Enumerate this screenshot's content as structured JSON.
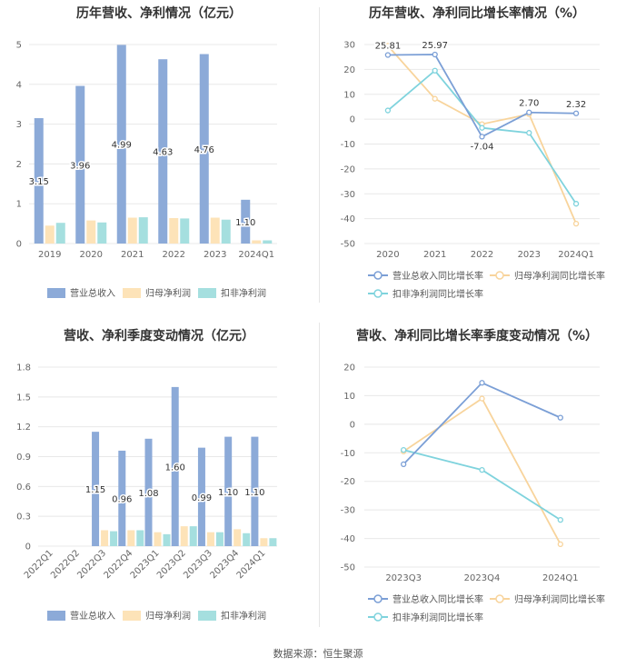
{
  "source": "数据来源：恒生聚源",
  "colors": {
    "revenue": "#8caad8",
    "net_profit": "#fde3b8",
    "deducted_profit": "#a5dfdf",
    "revenue_line": "#7b9fd6",
    "net_line": "#f8d49c",
    "deducted_line": "#7fd3dd",
    "grid": "#e8e8e8",
    "axis_text": "#666666",
    "label_text": "#333333"
  },
  "chart_data": [
    {
      "type": "bar",
      "title": "历年营收、净利情况（亿元）",
      "categories": [
        "2019",
        "2020",
        "2021",
        "2022",
        "2023",
        "2024Q1"
      ],
      "ylim": [
        0,
        5
      ],
      "yticks": [
        "0",
        "1",
        "2",
        "3",
        "4",
        "5"
      ],
      "series": [
        {
          "name": "营业总收入",
          "values": [
            3.15,
            3.96,
            4.99,
            4.63,
            4.76,
            1.1
          ],
          "labels": [
            "3.15",
            "3.96",
            "4.99",
            "4.63",
            "4.76",
            "1.10"
          ]
        },
        {
          "name": "归母净利润",
          "values": [
            0.45,
            0.58,
            0.65,
            0.64,
            0.65,
            0.08
          ]
        },
        {
          "name": "扣非净利润",
          "values": [
            0.52,
            0.53,
            0.66,
            0.63,
            0.6,
            0.08
          ]
        }
      ],
      "grid": true,
      "legend": "bottom"
    },
    {
      "type": "line",
      "title": "历年营收、净利同比增长率情况（%）",
      "categories": [
        "2020",
        "2021",
        "2022",
        "2023",
        "2024Q1"
      ],
      "ylim": [
        -50,
        30
      ],
      "yticks": [
        "30",
        "20",
        "10",
        "0",
        "-10",
        "-20",
        "-30",
        "-40",
        "-50"
      ],
      "series": [
        {
          "name": "营业总收入同比增长率",
          "values": [
            25.81,
            25.97,
            -7.04,
            2.7,
            2.32
          ],
          "labels": [
            "25.81",
            "25.97",
            "-7.04",
            "2.70",
            "2.32"
          ]
        },
        {
          "name": "归母净利润同比增长率",
          "values": [
            29.5,
            8.2,
            -2.0,
            2.0,
            -42.0
          ]
        },
        {
          "name": "扣非净利润同比增长率",
          "values": [
            3.5,
            19.5,
            -3.5,
            -5.5,
            -34.0
          ]
        }
      ],
      "grid": true,
      "legend": "bottom"
    },
    {
      "type": "bar",
      "title": "营收、净利季度变动情况（亿元）",
      "categories": [
        "2022Q1",
        "2022Q2",
        "2022Q3",
        "2022Q4",
        "2023Q1",
        "2023Q2",
        "2023Q3",
        "2023Q4",
        "2024Q1"
      ],
      "ylim": [
        0,
        1.8
      ],
      "yticks": [
        "0",
        "0.3",
        "0.6",
        "0.9",
        "1.2",
        "1.5",
        "1.8"
      ],
      "series": [
        {
          "name": "营业总收入",
          "values": [
            0,
            0,
            1.15,
            0.96,
            1.08,
            1.6,
            0.99,
            1.1,
            1.1
          ],
          "labels": [
            "",
            "",
            "1.15",
            "0.96",
            "1.08",
            "1.60",
            "0.99",
            "1.10",
            "1.10"
          ]
        },
        {
          "name": "归母净利润",
          "values": [
            0,
            0,
            0.16,
            0.16,
            0.14,
            0.2,
            0.14,
            0.17,
            0.08
          ]
        },
        {
          "name": "扣非净利润",
          "values": [
            0,
            0,
            0.15,
            0.16,
            0.12,
            0.2,
            0.14,
            0.13,
            0.08
          ]
        }
      ],
      "grid": true,
      "legend": "bottom"
    },
    {
      "type": "line",
      "title": "营收、净利同比增长率季度变动情况（%）",
      "categories": [
        "2023Q3",
        "2023Q4",
        "2024Q1"
      ],
      "ylim": [
        -50,
        20
      ],
      "yticks": [
        "20",
        "10",
        "0",
        "-10",
        "-20",
        "-30",
        "-40",
        "-50"
      ],
      "series": [
        {
          "name": "营业总收入同比增长率",
          "values": [
            -14.0,
            14.5,
            2.3
          ]
        },
        {
          "name": "归母净利润同比增长率",
          "values": [
            -9.5,
            9.0,
            -42.0
          ]
        },
        {
          "name": "扣非净利润同比增长率",
          "values": [
            -9.0,
            -16.0,
            -33.5
          ]
        }
      ],
      "grid": true,
      "legend": "bottom"
    }
  ]
}
